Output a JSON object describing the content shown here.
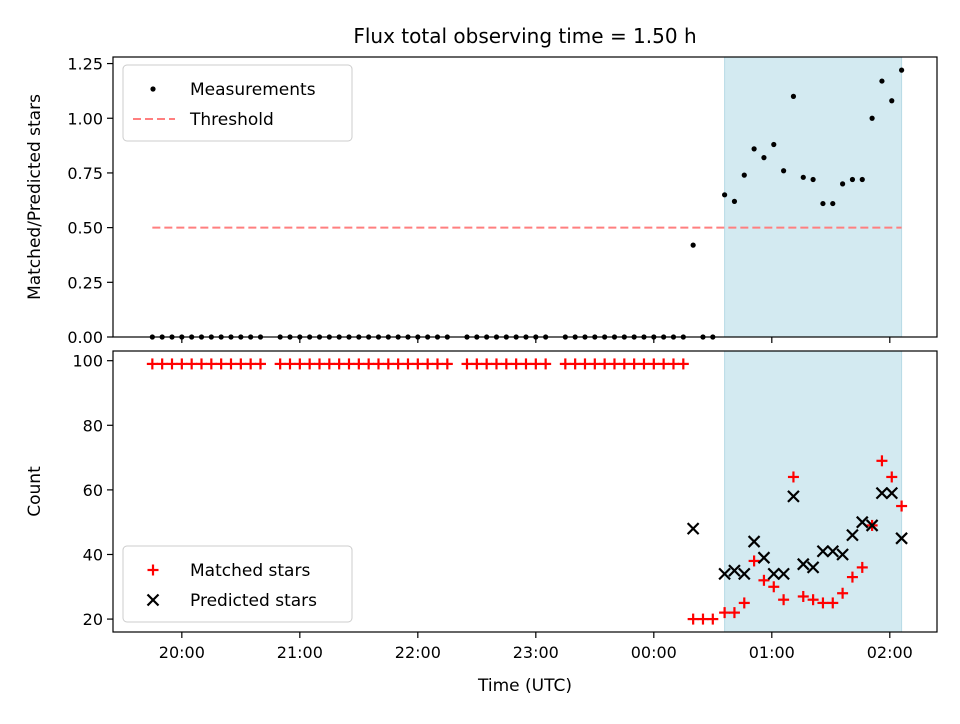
{
  "chart_data": {
    "type": "scatter",
    "title": "Flux total observing time = 1.50 h",
    "xlabel": "Time (UTC)",
    "x_tick_labels": [
      "20:00",
      "21:00",
      "22:00",
      "23:00",
      "00:00",
      "01:00",
      "02:00"
    ],
    "shaded_region": {
      "start": "00:36",
      "end": "02:06",
      "color": "#d3eaf1"
    },
    "panels": [
      {
        "name": "ratio",
        "ylabel": "Matched/Predicted stars",
        "ylim": [
          0,
          1.28
        ],
        "y_ticks": [
          0.0,
          0.25,
          0.5,
          0.75,
          1.0,
          1.25
        ],
        "y_tick_labels": [
          "0.00",
          "0.25",
          "0.50",
          "0.75",
          "1.00",
          "1.25"
        ],
        "legend_position": "top-left",
        "threshold": {
          "label": "Threshold",
          "value": 0.5,
          "x_start": "19:45",
          "x_end": "02:06",
          "color": "#ff7f7f"
        },
        "series": [
          {
            "name": "Measurements",
            "marker": "dot",
            "color": "#000000",
            "points": [
              [
                "19:45",
                0
              ],
              [
                "19:50",
                0
              ],
              [
                "19:55",
                0
              ],
              [
                "20:00",
                0
              ],
              [
                "20:05",
                0
              ],
              [
                "20:10",
                0
              ],
              [
                "20:15",
                0
              ],
              [
                "20:20",
                0
              ],
              [
                "20:25",
                0
              ],
              [
                "20:30",
                0
              ],
              [
                "20:35",
                0
              ],
              [
                "20:40",
                0
              ],
              [
                "20:50",
                0
              ],
              [
                "20:55",
                0
              ],
              [
                "21:00",
                0
              ],
              [
                "21:05",
                0
              ],
              [
                "21:10",
                0
              ],
              [
                "21:15",
                0
              ],
              [
                "21:20",
                0
              ],
              [
                "21:25",
                0
              ],
              [
                "21:30",
                0
              ],
              [
                "21:35",
                0
              ],
              [
                "21:40",
                0
              ],
              [
                "21:45",
                0
              ],
              [
                "21:50",
                0
              ],
              [
                "21:55",
                0
              ],
              [
                "22:00",
                0
              ],
              [
                "22:05",
                0
              ],
              [
                "22:10",
                0
              ],
              [
                "22:15",
                0
              ],
              [
                "22:25",
                0
              ],
              [
                "22:30",
                0
              ],
              [
                "22:35",
                0
              ],
              [
                "22:40",
                0
              ],
              [
                "22:45",
                0
              ],
              [
                "22:50",
                0
              ],
              [
                "22:55",
                0
              ],
              [
                "23:00",
                0
              ],
              [
                "23:05",
                0
              ],
              [
                "23:15",
                0
              ],
              [
                "23:20",
                0
              ],
              [
                "23:25",
                0
              ],
              [
                "23:30",
                0
              ],
              [
                "23:35",
                0
              ],
              [
                "23:40",
                0
              ],
              [
                "23:45",
                0
              ],
              [
                "23:50",
                0
              ],
              [
                "23:55",
                0
              ],
              [
                "00:00",
                0
              ],
              [
                "00:05",
                0
              ],
              [
                "00:10",
                0
              ],
              [
                "00:15",
                0
              ],
              [
                "00:20",
                0.42
              ],
              [
                "00:25",
                0
              ],
              [
                "00:30",
                0
              ],
              [
                "00:36",
                0.65
              ],
              [
                "00:41",
                0.62
              ],
              [
                "00:46",
                0.74
              ],
              [
                "00:51",
                0.86
              ],
              [
                "00:56",
                0.82
              ],
              [
                "01:01",
                0.88
              ],
              [
                "01:06",
                0.76
              ],
              [
                "01:11",
                1.1
              ],
              [
                "01:16",
                0.73
              ],
              [
                "01:21",
                0.72
              ],
              [
                "01:26",
                0.61
              ],
              [
                "01:31",
                0.61
              ],
              [
                "01:36",
                0.7
              ],
              [
                "01:41",
                0.72
              ],
              [
                "01:46",
                0.72
              ],
              [
                "01:51",
                1.0
              ],
              [
                "01:56",
                1.17
              ],
              [
                "02:01",
                1.08
              ],
              [
                "02:06",
                1.22
              ]
            ]
          }
        ]
      },
      {
        "name": "count",
        "ylabel": "Count",
        "ylim": [
          16,
          103
        ],
        "y_ticks": [
          20,
          40,
          60,
          80,
          100
        ],
        "y_tick_labels": [
          "20",
          "40",
          "60",
          "80",
          "100"
        ],
        "legend_position": "bottom-left",
        "series": [
          {
            "name": "Matched stars",
            "marker": "plus",
            "color": "#ff0000",
            "points": [
              [
                "19:45",
                99
              ],
              [
                "19:50",
                99
              ],
              [
                "19:55",
                99
              ],
              [
                "20:00",
                99
              ],
              [
                "20:05",
                99
              ],
              [
                "20:10",
                99
              ],
              [
                "20:15",
                99
              ],
              [
                "20:20",
                99
              ],
              [
                "20:25",
                99
              ],
              [
                "20:30",
                99
              ],
              [
                "20:35",
                99
              ],
              [
                "20:40",
                99
              ],
              [
                "20:50",
                99
              ],
              [
                "20:55",
                99
              ],
              [
                "21:00",
                99
              ],
              [
                "21:05",
                99
              ],
              [
                "21:10",
                99
              ],
              [
                "21:15",
                99
              ],
              [
                "21:20",
                99
              ],
              [
                "21:25",
                99
              ],
              [
                "21:30",
                99
              ],
              [
                "21:35",
                99
              ],
              [
                "21:40",
                99
              ],
              [
                "21:45",
                99
              ],
              [
                "21:50",
                99
              ],
              [
                "21:55",
                99
              ],
              [
                "22:00",
                99
              ],
              [
                "22:05",
                99
              ],
              [
                "22:10",
                99
              ],
              [
                "22:15",
                99
              ],
              [
                "22:25",
                99
              ],
              [
                "22:30",
                99
              ],
              [
                "22:35",
                99
              ],
              [
                "22:40",
                99
              ],
              [
                "22:45",
                99
              ],
              [
                "22:50",
                99
              ],
              [
                "22:55",
                99
              ],
              [
                "23:00",
                99
              ],
              [
                "23:05",
                99
              ],
              [
                "23:15",
                99
              ],
              [
                "23:20",
                99
              ],
              [
                "23:25",
                99
              ],
              [
                "23:30",
                99
              ],
              [
                "23:35",
                99
              ],
              [
                "23:40",
                99
              ],
              [
                "23:45",
                99
              ],
              [
                "23:50",
                99
              ],
              [
                "23:55",
                99
              ],
              [
                "00:00",
                99
              ],
              [
                "00:05",
                99
              ],
              [
                "00:10",
                99
              ],
              [
                "00:15",
                99
              ],
              [
                "00:20",
                20
              ],
              [
                "00:25",
                20
              ],
              [
                "00:30",
                20
              ],
              [
                "00:36",
                22
              ],
              [
                "00:41",
                22
              ],
              [
                "00:46",
                25
              ],
              [
                "00:51",
                38
              ],
              [
                "00:56",
                32
              ],
              [
                "01:01",
                30
              ],
              [
                "01:06",
                26
              ],
              [
                "01:11",
                64
              ],
              [
                "01:16",
                27
              ],
              [
                "01:21",
                26
              ],
              [
                "01:26",
                25
              ],
              [
                "01:31",
                25
              ],
              [
                "01:36",
                28
              ],
              [
                "01:41",
                33
              ],
              [
                "01:46",
                36
              ],
              [
                "01:51",
                49
              ],
              [
                "01:56",
                69
              ],
              [
                "02:01",
                64
              ],
              [
                "02:06",
                55
              ]
            ]
          },
          {
            "name": "Predicted stars",
            "marker": "x",
            "color": "#000000",
            "points": [
              [
                "00:20",
                48
              ],
              [
                "00:36",
                34
              ],
              [
                "00:41",
                35
              ],
              [
                "00:46",
                34
              ],
              [
                "00:51",
                44
              ],
              [
                "00:56",
                39
              ],
              [
                "01:01",
                34
              ],
              [
                "01:06",
                34
              ],
              [
                "01:11",
                58
              ],
              [
                "01:16",
                37
              ],
              [
                "01:21",
                36
              ],
              [
                "01:26",
                41
              ],
              [
                "01:31",
                41
              ],
              [
                "01:36",
                40
              ],
              [
                "01:41",
                46
              ],
              [
                "01:46",
                50
              ],
              [
                "01:51",
                49
              ],
              [
                "01:56",
                59
              ],
              [
                "02:01",
                59
              ],
              [
                "02:06",
                45
              ]
            ]
          }
        ]
      }
    ]
  }
}
